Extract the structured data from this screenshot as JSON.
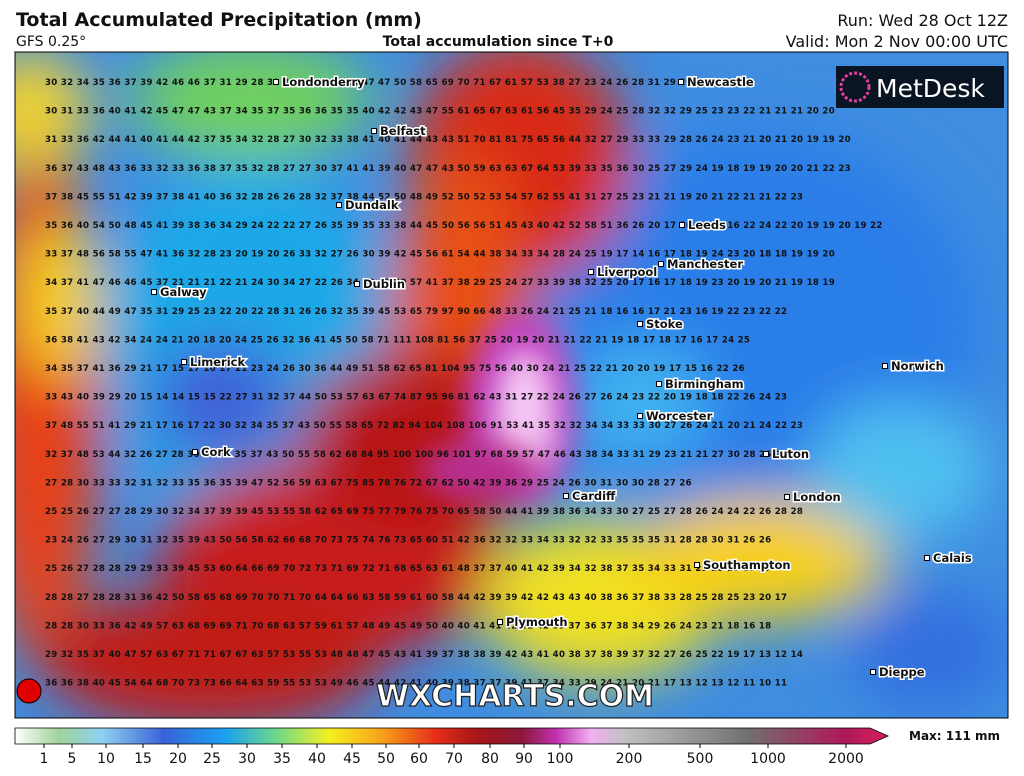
{
  "header": {
    "title": "Total Accumulated Precipitation (mm)",
    "model": "GFS 0.25°",
    "subtitle": "Total accumulation since T+0",
    "run": "Run: Wed 28 Oct 12Z",
    "valid": "Valid: Mon 2 Nov 00:00 UTC"
  },
  "logo": "MetDesk",
  "watermark": "WXCHARTS.COM",
  "grid_rows": [
    "30 32 34 35 36 37 39 42 46 46 37 31 29 28 30 32 34 36 38 45 47 47 50 58 65 69 70 71 67 61 57 53 38 27 23 24 26 28 31 29 26 24",
    "30 31 33 36 40 41 42 45 47 47 43 37 34 35 37 35 36 36 35 35 40 42 42 43 47 55 61 65 67 63 61 56 45 35 29 24 25 28 32 32 29 25 23 23 22 21 21 21 20 20",
    "31 33 36 42 44 41 40 41 44 42 37 35 34 32 28 27 30 32 33 38 41 40 41 44 43 43 51 70 81 81 75 65 56 44 32 27 29 33 33 29 28 26 24 23 21 20 21 20 19 19 20",
    "36 37 43 48 43 36 33 32 33 36 38 37 35 32 28 27 27 30 37 41 41 39 40 47 47 43 50 59 63 63 67 64 53 39 33 35 36 30 25 27 29 24 19 18 19 19 20 20 21 22 23",
    "37 38 45 55 51 42 39 37 38 41 40 36 32 28 26 26 28 32 37 38 44 52 50 48 49 52 50 52 53 54 57 62 55 41 31 27 25 23 21 21 19 20 21 22 21 21 22 23",
    "35 36 40 54 50 48 45 41 39 38 36 34 29 24 22 22 27 26 35 39 35 33 38 44 45 50 56 56 51 45 43 40 42 52 58 51 36 26 20 17 16 16 15 16 22 24 22 20 19 19 20 19 22",
    "33 37 48 56 58 55 47 41 36 32 28 23 20 19 20 26 33 32 27 26 30 39 42 45 56 61 54 44 38 34 33 34 28 24 25 19 17 14 16 17 18 19 24 23 20 18 18 19 19 20",
    "34 37 41 47 46 46 45 37 21 21 21 22 21 24 30 34 27 22 26 34 39 42 50 57 41 37 38 29 25 24 27 33 39 38 32 25 20 17 16 17 18 19 23 20 19 20 21 19 18 19",
    "35 37 40 44 49 47 35 31 29 25 23 22 20 22 28 31 26 26 32 35 39 45 53 65 79 97 90 66 48 33 26 24 21 25 21 18 16 16 17 21 23 16 19 22 23 22 22",
    "36 38 41 43 42 34 24 24 21 20 18 20 24 25 26 32 36 41 45 50 58 71 111 108 81 56 37 25 20 19 20 21 21 22 21 19 18 17 18 17 16 17 24 25",
    "34 35 37 41 36 29 21 17 15 17 16 17 21 23 24 26 30 36 44 49 51 58 62 65 81 104 95 75 56 40 30 24 21 25 22 21 20 20 19 17 15 16 22 26",
    "33 43 40 39 29 20 15 14 14 15 15 22 27 31 32 37 44 50 53 57 63 67 74 87 95 96 81 62 43 31 27 22 24 26 27 26 24 23 22 20 19 18 18 22 26 24 23",
    "37 48 55 51 41 29 21 17 16 17 22 30 32 34 35 37 43 50 55 58 65 72 82 94 104 108 106 91 53 41 35 32 32 34 34 33 33 30 27 26 24 21 20 21 24 22 23",
    "32 37 48 53 44 32 26 27 28 30 32 34 35 37 43 50 55 58 62 68 84 95 100 100 96 101 97 68 59 57 47 46 43 38 34 33 31 29 23 21 21 27 30 28 26 25 24",
    "27 28 30 33 33 32 31 32 33 35 36 35 39 47 52 56 59 63 67 75 85 78 76 72 67 62 50 42 39 36 29 25 24 26 30 31 30 30 28 27 26",
    "25 25 26 27 27 28 29 30 32 34 37 39 39 45 53 55 58 62 65 69 75 77 79 76 75 70 65 58 50 44 41 39 38 36 34 33 30 27 25 27 28 26 24 24 22 26 28 28",
    "23 24 26 27 29 30 31 32 35 39 43 50 56 58 62 66 68 70 73 75 74 76 73 65 60 51 42 36 32 32 33 34 33 32 32 33 35 35 35 31 28 28 30 31 26 26",
    "25 26 27 28 28 29 29 33 39 45 53 60 64 66 69 70 72 73 71 69 72 71 68 65 63 61 48 37 37 40 41 42 39 34 32 38 37 35 34 33 31 29 28 23 19 17",
    "28 28 27 28 28 31 36 42 50 58 65 68 69 70 70 71 70 64 64 66 63 58 59 61 60 58 44 42 39 39 42 42 43 43 40 38 36 37 38 33 28 25 28 25 23 20 17",
    "28 28 30 33 36 42 49 57 63 68 69 69 71 70 68 63 57 59 61 57 48 49 45 49 50 40 40 41 41 42 41 42 39 37 36 37 38 34 29 26 24 23 21 18 16 18",
    "29 32 35 37 40 47 57 63 67 71 71 67 67 63 57 53 55 53 48 48 47 45 43 41 39 37 38 38 39 42 43 41 40 38 37 38 39 37 32 27 26 25 22 19 17 13 12 14",
    "36 36 38 40 45 54 64 68 70 73 73 66 64 63 59 55 53 53 49 46 45 44 42 41 40 39 38 37 37 39 41 37 34 33 29 24 21 20 21 17 13 12 13 12 11 10 11"
  ],
  "cities": [
    "Londonderry",
    "Newcastle",
    "Belfast",
    "Dundalk",
    "Leeds",
    "Manchester",
    "Liverpool",
    "Galway",
    "Dublin",
    "Stoke",
    "Limerick",
    "Norwich",
    "Birmingham",
    "Worcester",
    "Cork",
    "Luton",
    "Cardiff",
    "London",
    "Calais",
    "Southampton",
    "Plymouth",
    "Dieppe"
  ],
  "legend": {
    "ticks": [
      1,
      5,
      10,
      15,
      20,
      25,
      30,
      35,
      40,
      45,
      50,
      60,
      70,
      80,
      90,
      100,
      200,
      500,
      1000,
      2000
    ],
    "max_label": "Max: 111 mm"
  }
}
